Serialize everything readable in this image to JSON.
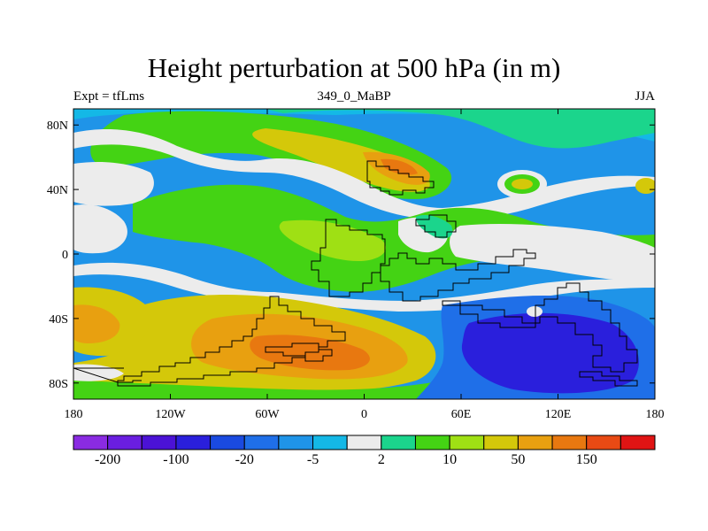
{
  "title": "Height perturbation at 500 hPa (in m)",
  "left_string": "Expt = tfLms",
  "center_string": "349_0_MaBP",
  "right_string": "JJA",
  "map": {
    "lon_range": [
      -180,
      180
    ],
    "lat_range": [
      -90,
      90
    ],
    "x_ticks": [
      {
        "value": -180,
        "label": "180"
      },
      {
        "value": -120,
        "label": "120W"
      },
      {
        "value": -60,
        "label": "60W"
      },
      {
        "value": 0,
        "label": "0"
      },
      {
        "value": 60,
        "label": "60E"
      },
      {
        "value": 120,
        "label": "120E"
      },
      {
        "value": 180,
        "label": "180"
      }
    ],
    "y_ticks": [
      {
        "value": 80,
        "label": "80N"
      },
      {
        "value": 40,
        "label": "40N"
      },
      {
        "value": 0,
        "label": "0"
      },
      {
        "value": -40,
        "label": "40S"
      },
      {
        "value": -80,
        "label": "80S"
      }
    ],
    "land_outline_color": "#000000"
  },
  "colorbar": {
    "colors": [
      "#8a2be2",
      "#6a1ee0",
      "#4b12d6",
      "#2a1fdc",
      "#1a4ae0",
      "#1f6fe8",
      "#1f94e8",
      "#14b8e6",
      "#ececec",
      "#1bd58c",
      "#44d314",
      "#9fe014",
      "#d4c80a",
      "#e8a010",
      "#e87810",
      "#e84a14",
      "#e01414"
    ],
    "labels": [
      {
        "after_box": 1,
        "text": "-200"
      },
      {
        "after_box": 3,
        "text": "-100"
      },
      {
        "after_box": 5,
        "text": "-20"
      },
      {
        "after_box": 7,
        "text": "-5"
      },
      {
        "after_box": 9,
        "text": "2"
      },
      {
        "after_box": 11,
        "text": "10"
      },
      {
        "after_box": 13,
        "text": "50"
      },
      {
        "after_box": 15,
        "text": "150"
      }
    ]
  }
}
